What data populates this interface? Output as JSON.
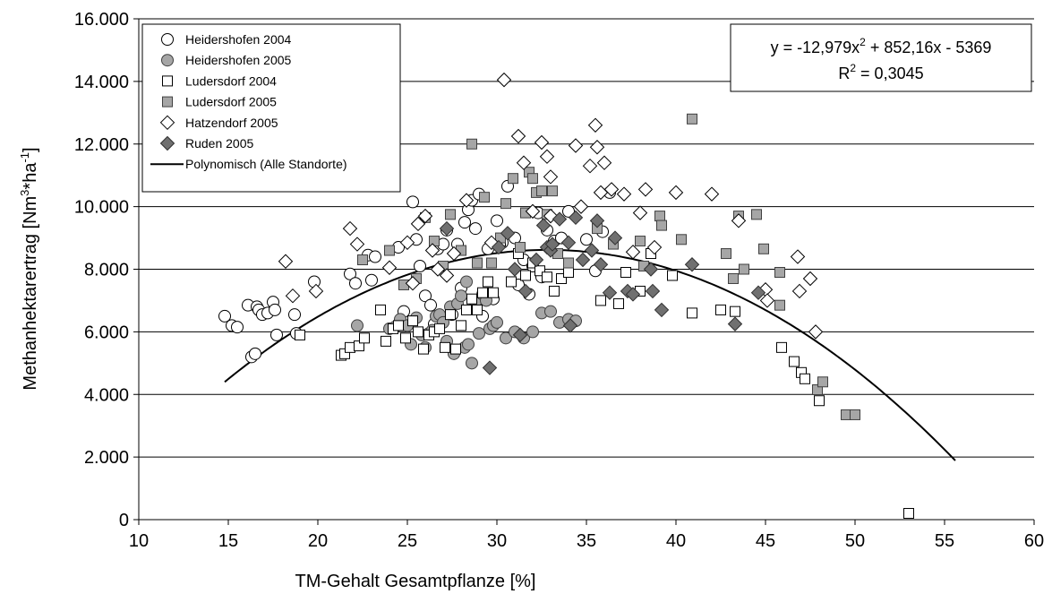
{
  "chart_data": {
    "type": "scatter",
    "title": "",
    "xlabel": "TM-Gehalt Gesamtpflanze [%]",
    "ylabel_main": "Methanhektarertrag [Nm",
    "ylabel_sup1": "3",
    "ylabel_mid": "*ha",
    "ylabel_sup2": "-1",
    "ylabel_end": "]",
    "xlim": [
      10,
      60
    ],
    "ylim": [
      0,
      16000
    ],
    "x_ticks": [
      10,
      15,
      20,
      25,
      30,
      35,
      40,
      45,
      50,
      55,
      60
    ],
    "x_tick_labels": [
      "10",
      "15",
      "20",
      "25",
      "30",
      "35",
      "40",
      "45",
      "50",
      "55",
      "60"
    ],
    "y_ticks": [
      0,
      2000,
      4000,
      6000,
      8000,
      10000,
      12000,
      14000,
      16000
    ],
    "y_tick_labels": [
      "0",
      "2.000",
      "4.000",
      "6.000",
      "8.000",
      "10.000",
      "12.000",
      "14.000",
      "16.000"
    ],
    "grid": "horizontal",
    "legend_position": "top-left",
    "equation": {
      "line1_a": "y = -12,979x",
      "line1_sup": "2",
      "line1_b": " + 852,16x - 5369",
      "line2_a": "R",
      "line2_sup": "2",
      "line2_b": " = 0,3045"
    },
    "trendline": {
      "name": "Polynomisch (Alle Standorte)",
      "coefficients": [
        -12.979,
        852.16,
        -5369
      ],
      "x_range": [
        14.8,
        55.7
      ],
      "color": "#000000"
    },
    "series": [
      {
        "name": "Heidershofen 2004",
        "marker": "circle",
        "fill": "#ffffff",
        "stroke": "#000000",
        "points": [
          [
            14.8,
            6500
          ],
          [
            15.2,
            6200
          ],
          [
            15.5,
            6150
          ],
          [
            16.1,
            6850
          ],
          [
            16.3,
            5200
          ],
          [
            16.5,
            5300
          ],
          [
            16.6,
            6800
          ],
          [
            16.7,
            6700
          ],
          [
            16.9,
            6550
          ],
          [
            17.2,
            6600
          ],
          [
            17.5,
            6950
          ],
          [
            17.6,
            6700
          ],
          [
            17.7,
            5900
          ],
          [
            18.7,
            6550
          ],
          [
            18.8,
            5950
          ],
          [
            19.8,
            7600
          ],
          [
            21.8,
            7850
          ],
          [
            22.1,
            7550
          ],
          [
            22.8,
            8450
          ],
          [
            23.0,
            7650
          ],
          [
            23.2,
            8400
          ],
          [
            24.5,
            8700
          ],
          [
            24.8,
            6650
          ],
          [
            25.3,
            10150
          ],
          [
            25.5,
            8950
          ],
          [
            25.7,
            8100
          ],
          [
            26.0,
            7150
          ],
          [
            26.3,
            6850
          ],
          [
            26.5,
            6250
          ],
          [
            26.7,
            8650
          ],
          [
            27.0,
            8800
          ],
          [
            27.2,
            9250
          ],
          [
            27.5,
            6550
          ],
          [
            27.8,
            8800
          ],
          [
            28.0,
            7400
          ],
          [
            28.2,
            9500
          ],
          [
            28.4,
            9900
          ],
          [
            28.6,
            10200
          ],
          [
            28.8,
            9300
          ],
          [
            29.0,
            10400
          ],
          [
            29.2,
            6500
          ],
          [
            29.5,
            8650
          ],
          [
            29.8,
            7050
          ],
          [
            30.0,
            9550
          ],
          [
            30.3,
            8850
          ],
          [
            30.6,
            10650
          ],
          [
            31.0,
            9000
          ],
          [
            31.2,
            7500
          ],
          [
            31.5,
            8300
          ],
          [
            31.8,
            7200
          ],
          [
            32.0,
            8100
          ],
          [
            32.3,
            9800
          ],
          [
            32.5,
            7750
          ],
          [
            32.8,
            9250
          ],
          [
            33.2,
            8900
          ],
          [
            33.6,
            9000
          ],
          [
            34.0,
            9850
          ],
          [
            35.0,
            8950
          ],
          [
            35.5,
            7950
          ],
          [
            35.9,
            9200
          ],
          [
            36.3,
            10450
          ]
        ]
      },
      {
        "name": "Heidershofen 2005",
        "marker": "circle",
        "fill": "#a6a6a6",
        "stroke": "#404040",
        "points": [
          [
            22.2,
            6200
          ],
          [
            24.0,
            6100
          ],
          [
            24.3,
            6150
          ],
          [
            24.6,
            6400
          ],
          [
            25.0,
            6200
          ],
          [
            25.2,
            5600
          ],
          [
            25.5,
            6450
          ],
          [
            25.8,
            5900
          ],
          [
            26.0,
            5500
          ],
          [
            26.2,
            5950
          ],
          [
            26.4,
            6050
          ],
          [
            26.6,
            6500
          ],
          [
            26.8,
            6550
          ],
          [
            27.0,
            6300
          ],
          [
            27.2,
            5700
          ],
          [
            27.4,
            6800
          ],
          [
            27.6,
            5300
          ],
          [
            27.8,
            6900
          ],
          [
            28.0,
            7150
          ],
          [
            28.2,
            5500
          ],
          [
            28.4,
            5600
          ],
          [
            28.6,
            5000
          ],
          [
            28.8,
            6950
          ],
          [
            29.0,
            5950
          ],
          [
            29.2,
            7200
          ],
          [
            29.4,
            7000
          ],
          [
            29.6,
            6100
          ],
          [
            29.8,
            6200
          ],
          [
            30.0,
            6300
          ],
          [
            30.5,
            5800
          ],
          [
            31.0,
            6000
          ],
          [
            31.5,
            5800
          ],
          [
            32.0,
            6000
          ],
          [
            32.5,
            6600
          ],
          [
            33.0,
            6650
          ],
          [
            33.5,
            6300
          ],
          [
            34.0,
            6400
          ],
          [
            34.4,
            6350
          ],
          [
            28.3,
            7600
          ]
        ]
      },
      {
        "name": "Ludersdorf  2004",
        "marker": "square",
        "fill": "#ffffff",
        "stroke": "#000000",
        "points": [
          [
            19.0,
            5900
          ],
          [
            21.3,
            5250
          ],
          [
            21.5,
            5300
          ],
          [
            21.8,
            5500
          ],
          [
            22.3,
            5550
          ],
          [
            22.6,
            5800
          ],
          [
            23.5,
            6700
          ],
          [
            23.8,
            5700
          ],
          [
            24.2,
            6100
          ],
          [
            24.5,
            6200
          ],
          [
            24.9,
            5800
          ],
          [
            25.3,
            6350
          ],
          [
            25.6,
            6000
          ],
          [
            25.9,
            5450
          ],
          [
            26.2,
            5900
          ],
          [
            26.5,
            6000
          ],
          [
            26.8,
            6100
          ],
          [
            27.1,
            5500
          ],
          [
            27.4,
            6550
          ],
          [
            27.7,
            5450
          ],
          [
            28.0,
            6200
          ],
          [
            28.3,
            6700
          ],
          [
            28.6,
            7050
          ],
          [
            28.9,
            6700
          ],
          [
            29.2,
            7250
          ],
          [
            29.5,
            7600
          ],
          [
            29.8,
            7250
          ],
          [
            30.2,
            8900
          ],
          [
            30.8,
            7600
          ],
          [
            31.2,
            8500
          ],
          [
            31.6,
            7800
          ],
          [
            32.0,
            8200
          ],
          [
            32.4,
            7950
          ],
          [
            32.8,
            7750
          ],
          [
            33.2,
            7300
          ],
          [
            33.6,
            7700
          ],
          [
            34.0,
            7900
          ],
          [
            35.8,
            7000
          ],
          [
            36.8,
            6900
          ],
          [
            37.2,
            7900
          ],
          [
            38.0,
            7300
          ],
          [
            38.6,
            8500
          ],
          [
            39.8,
            7800
          ],
          [
            40.9,
            6600
          ],
          [
            42.5,
            6700
          ],
          [
            43.3,
            6650
          ],
          [
            45.9,
            5500
          ],
          [
            46.6,
            5050
          ],
          [
            47.0,
            4700
          ],
          [
            47.2,
            4500
          ],
          [
            48.0,
            3800
          ],
          [
            53.0,
            200
          ]
        ]
      },
      {
        "name": "Ludersdorf 2005",
        "marker": "square",
        "fill": "#a6a6a6",
        "stroke": "#404040",
        "points": [
          [
            22.5,
            8300
          ],
          [
            24.0,
            8600
          ],
          [
            24.8,
            7500
          ],
          [
            25.5,
            7700
          ],
          [
            26.0,
            9650
          ],
          [
            26.5,
            8900
          ],
          [
            27.0,
            8100
          ],
          [
            27.4,
            9750
          ],
          [
            28.0,
            8600
          ],
          [
            28.6,
            12000
          ],
          [
            28.9,
            8200
          ],
          [
            29.3,
            10300
          ],
          [
            29.7,
            8200
          ],
          [
            30.2,
            9000
          ],
          [
            30.5,
            10100
          ],
          [
            30.9,
            10900
          ],
          [
            31.3,
            8700
          ],
          [
            31.6,
            9800
          ],
          [
            31.8,
            11100
          ],
          [
            32.0,
            10900
          ],
          [
            32.2,
            10450
          ],
          [
            32.5,
            10500
          ],
          [
            32.8,
            9750
          ],
          [
            33.1,
            10500
          ],
          [
            33.4,
            8500
          ],
          [
            34.0,
            8200
          ],
          [
            35.6,
            9300
          ],
          [
            36.5,
            8800
          ],
          [
            38.0,
            8900
          ],
          [
            38.2,
            8100
          ],
          [
            39.1,
            9700
          ],
          [
            39.2,
            9400
          ],
          [
            40.3,
            8950
          ],
          [
            40.9,
            12800
          ],
          [
            42.8,
            8500
          ],
          [
            43.2,
            7700
          ],
          [
            43.5,
            9700
          ],
          [
            43.8,
            8000
          ],
          [
            44.5,
            9750
          ],
          [
            44.9,
            8650
          ],
          [
            45.8,
            7900
          ],
          [
            45.8,
            6850
          ],
          [
            47.9,
            4150
          ],
          [
            48.2,
            4400
          ],
          [
            49.5,
            3350
          ],
          [
            50.0,
            3350
          ]
        ]
      },
      {
        "name": "Hatzendorf  2005",
        "marker": "diamond",
        "fill": "#ffffff",
        "stroke": "#000000",
        "points": [
          [
            18.2,
            8250
          ],
          [
            18.6,
            7150
          ],
          [
            19.9,
            7300
          ],
          [
            21.8,
            9300
          ],
          [
            22.2,
            8800
          ],
          [
            24.0,
            8050
          ],
          [
            25.0,
            8850
          ],
          [
            25.3,
            7550
          ],
          [
            25.6,
            9450
          ],
          [
            26.0,
            9700
          ],
          [
            26.4,
            8600
          ],
          [
            26.7,
            8000
          ],
          [
            27.2,
            7800
          ],
          [
            27.6,
            8500
          ],
          [
            28.3,
            10200
          ],
          [
            29.7,
            8850
          ],
          [
            30.4,
            14050
          ],
          [
            31.2,
            12250
          ],
          [
            31.5,
            11400
          ],
          [
            32.0,
            9850
          ],
          [
            32.5,
            12050
          ],
          [
            32.8,
            11600
          ],
          [
            33.0,
            10950
          ],
          [
            33.0,
            9700
          ],
          [
            34.4,
            11950
          ],
          [
            34.7,
            10000
          ],
          [
            35.2,
            11300
          ],
          [
            35.5,
            12600
          ],
          [
            35.6,
            11900
          ],
          [
            35.8,
            10450
          ],
          [
            36.0,
            11400
          ],
          [
            36.4,
            10550
          ],
          [
            37.1,
            10400
          ],
          [
            37.6,
            8550
          ],
          [
            38.0,
            9800
          ],
          [
            38.3,
            10550
          ],
          [
            38.8,
            8700
          ],
          [
            40.0,
            10450
          ],
          [
            42.0,
            10400
          ],
          [
            43.5,
            9550
          ],
          [
            45.0,
            7350
          ],
          [
            45.1,
            7000
          ],
          [
            46.8,
            8400
          ],
          [
            46.9,
            7300
          ],
          [
            47.5,
            7700
          ],
          [
            47.8,
            6000
          ]
        ]
      },
      {
        "name": "Ruden 2005",
        "marker": "diamond",
        "fill": "#707070",
        "stroke": "#303030",
        "points": [
          [
            27.2,
            9300
          ],
          [
            29.6,
            4850
          ],
          [
            30.1,
            8700
          ],
          [
            30.6,
            9150
          ],
          [
            31.0,
            8000
          ],
          [
            31.3,
            5900
          ],
          [
            31.6,
            7300
          ],
          [
            32.2,
            8300
          ],
          [
            32.6,
            9400
          ],
          [
            32.8,
            8700
          ],
          [
            33.0,
            8600
          ],
          [
            33.1,
            8800
          ],
          [
            33.5,
            9600
          ],
          [
            34.0,
            8850
          ],
          [
            34.1,
            6200
          ],
          [
            34.4,
            9650
          ],
          [
            34.8,
            8300
          ],
          [
            35.3,
            8600
          ],
          [
            35.6,
            9550
          ],
          [
            35.8,
            8150
          ],
          [
            36.3,
            7250
          ],
          [
            36.6,
            9000
          ],
          [
            37.3,
            7300
          ],
          [
            37.6,
            7200
          ],
          [
            38.6,
            8000
          ],
          [
            38.7,
            7300
          ],
          [
            39.2,
            6700
          ],
          [
            40.9,
            8150
          ],
          [
            43.3,
            6250
          ],
          [
            44.6,
            7250
          ]
        ]
      }
    ]
  }
}
